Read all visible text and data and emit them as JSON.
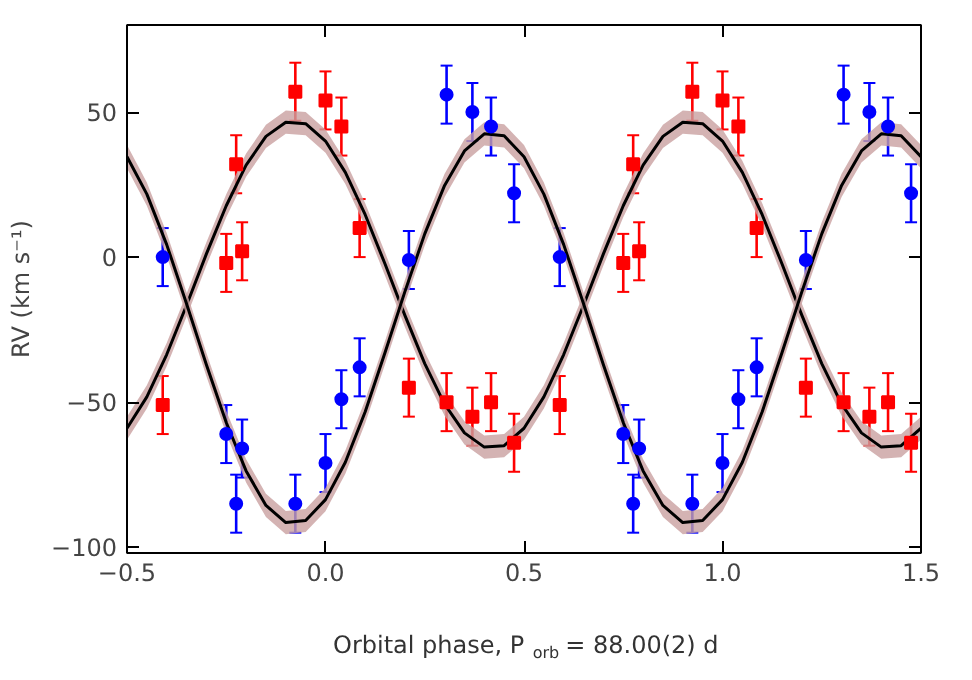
{
  "chart_data": {
    "type": "scatter",
    "xlabel": "Orbital phase, P$_{orb}$ = 88.00(2) d",
    "ylabel": "RV (km s⁻¹)",
    "xlim": [
      -0.5,
      1.5
    ],
    "ylim": [
      -102,
      80
    ],
    "xticks": [
      {
        "value": -0.5,
        "label": "−0.5"
      },
      {
        "value": 0,
        "label": "0.0"
      },
      0.5,
      {
        "value": 1,
        "label": "1.0"
      },
      1.5
    ],
    "yticks": [
      {
        "value": -100,
        "label": "−100"
      },
      {
        "value": -50,
        "label": "−50"
      },
      0,
      50
    ],
    "grid": false,
    "series": [
      {
        "type": "line",
        "color": "#000000",
        "line_style": "solid",
        "x": [
          -0.5,
          -0.45,
          -0.4,
          -0.35,
          -0.3,
          -0.25,
          -0.2,
          -0.15,
          -0.1,
          -0.05,
          0,
          0.05,
          0.1,
          0.15,
          0.2,
          0.25,
          0.3,
          0.35,
          0.4,
          0.45,
          0.5,
          0.55,
          0.6,
          0.65,
          0.7,
          0.75,
          0.8,
          0.85,
          0.9,
          0.95,
          1,
          1.05,
          1.1,
          1.15,
          1.2,
          1.25,
          1.3,
          1.35,
          1.4,
          1.45,
          1.5
        ],
        "values": [
          -59.0,
          -48.2,
          -33.6,
          -16.6,
          1.1,
          17.7,
          31.7,
          41.6,
          46.5,
          46.0,
          40.0,
          29.2,
          14.6,
          -2.4,
          -20.1,
          -36.7,
          -50.7,
          -60.6,
          -65.5,
          -65.0,
          -59.0,
          -48.2,
          -33.6,
          -16.6,
          1.1,
          17.7,
          31.7,
          41.6,
          46.5,
          46.0,
          40.0,
          29.2,
          14.6,
          -2.4,
          -20.1,
          -36.7,
          -50.7,
          -60.6,
          -65.5,
          -65.0,
          -59.0
        ],
        "lower": [
          -63.0,
          -52.2,
          -37.6,
          -20.6,
          -2.9,
          13.7,
          27.7,
          37.6,
          42.5,
          42.0,
          36.0,
          25.2,
          10.6,
          -6.4,
          -24.1,
          -40.7,
          -54.7,
          -64.6,
          -69.5,
          -69.0,
          -63.0,
          -52.2,
          -37.6,
          -20.6,
          -2.9,
          13.7,
          27.7,
          37.6,
          42.5,
          42.0,
          36.0,
          25.2,
          10.6,
          -6.4,
          -24.1,
          -40.7,
          -54.7,
          -64.6,
          -69.5,
          -69.0,
          -63.0
        ],
        "upper": [
          -55.0,
          -44.2,
          -29.6,
          -12.6,
          5.1,
          21.7,
          35.7,
          45.6,
          50.5,
          50.0,
          44.0,
          33.2,
          18.6,
          1.6,
          -16.1,
          -32.7,
          -46.7,
          -56.6,
          -61.5,
          -61.0,
          -55.0,
          -44.2,
          -29.6,
          -12.6,
          5.1,
          21.7,
          35.7,
          45.6,
          50.5,
          50.0,
          44.0,
          33.2,
          18.6,
          1.6,
          -16.1,
          -32.7,
          -46.7,
          -56.6,
          -61.5,
          -61.0,
          -55.0
        ]
      },
      {
        "type": "line",
        "color": "#000000",
        "line_style": "solid",
        "x": [
          -0.5,
          -0.45,
          -0.4,
          -0.35,
          -0.3,
          -0.25,
          -0.2,
          -0.15,
          -0.1,
          -0.05,
          0,
          0.05,
          0.1,
          0.15,
          0.2,
          0.25,
          0.3,
          0.35,
          0.4,
          0.45,
          0.5,
          0.55,
          0.6,
          0.65,
          0.7,
          0.75,
          0.8,
          0.85,
          0.9,
          0.95,
          1,
          1.05,
          1.1,
          1.15,
          1.2,
          1.25,
          1.3,
          1.35,
          1.4,
          1.45,
          1.5
        ],
        "values": [
          34.6,
          21.7,
          4.3,
          -16.1,
          -37.1,
          -57.0,
          -73.7,
          -85.6,
          -91.5,
          -90.8,
          -83.6,
          -70.7,
          -53.3,
          -32.9,
          -11.9,
          8.0,
          24.7,
          36.6,
          42.5,
          41.8,
          34.6,
          21.7,
          4.3,
          -16.1,
          -37.1,
          -57.0,
          -73.7,
          -85.6,
          -91.5,
          -90.8,
          -83.6,
          -70.7,
          -53.3,
          -32.9,
          -11.9,
          8.0,
          24.7,
          36.6,
          42.5,
          41.8,
          34.6
        ],
        "lower": [
          30.6,
          17.7,
          0.3,
          -20.1,
          -41.1,
          -61.0,
          -77.7,
          -89.6,
          -95.5,
          -94.8,
          -87.6,
          -74.7,
          -57.3,
          -36.9,
          -15.9,
          4.0,
          20.7,
          32.6,
          38.5,
          37.8,
          30.6,
          17.7,
          0.3,
          -20.1,
          -41.1,
          -61.0,
          -77.7,
          -89.6,
          -95.5,
          -94.8,
          -87.6,
          -74.7,
          -57.3,
          -36.9,
          -15.9,
          4.0,
          20.7,
          32.6,
          38.5,
          37.8,
          30.6
        ],
        "upper": [
          38.6,
          25.7,
          8.3,
          -12.1,
          -33.1,
          -53.0,
          -69.7,
          -81.6,
          -87.5,
          -86.8,
          -79.6,
          -66.7,
          -49.3,
          -28.9,
          -7.9,
          12.0,
          28.7,
          40.6,
          46.5,
          45.8,
          38.6,
          25.7,
          8.3,
          -12.1,
          -33.1,
          -53.0,
          -69.7,
          -81.6,
          -87.5,
          -86.8,
          -79.6,
          -66.7,
          -49.3,
          -28.9,
          -7.9,
          12.0,
          28.7,
          40.6,
          46.5,
          45.8,
          38.6
        ]
      },
      {
        "color": "#ff0000",
        "marker": "square",
        "x": [
          -0.41,
          -0.25,
          -0.225,
          -0.21,
          -0.076,
          0.0,
          0.04,
          0.086,
          0.21,
          0.305,
          0.37,
          0.417,
          0.475,
          0.59,
          0.75,
          0.775,
          0.79,
          0.924,
          1.0,
          1.04,
          1.086,
          1.21,
          1.305,
          1.37,
          1.417,
          1.475
        ],
        "values": [
          -51,
          -2,
          32,
          2,
          57,
          54,
          45,
          10,
          -45,
          -50,
          -55,
          -50,
          -64,
          -51,
          -2,
          32,
          2,
          57,
          54,
          45,
          10,
          -45,
          -50,
          -55,
          -50,
          -64
        ],
        "errors": [
          10,
          10,
          10,
          10,
          10,
          10,
          10,
          10,
          10,
          10,
          10,
          10,
          10,
          10,
          10,
          10,
          10,
          10,
          10,
          10,
          10,
          10,
          10,
          10,
          10,
          10
        ]
      },
      {
        "color": "#0000ff",
        "marker": "circle",
        "x": [
          -0.41,
          -0.25,
          -0.225,
          -0.21,
          -0.076,
          0.0,
          0.04,
          0.086,
          0.21,
          0.305,
          0.37,
          0.417,
          0.475,
          0.59,
          0.75,
          0.775,
          0.79,
          0.924,
          1.0,
          1.04,
          1.086,
          1.21,
          1.305,
          1.37,
          1.417,
          1.475
        ],
        "values": [
          0,
          -61,
          -85,
          -66,
          -85,
          -71,
          -49,
          -38,
          -1,
          56,
          50,
          45,
          22,
          0,
          -61,
          -85,
          -66,
          -85,
          -71,
          -49,
          -38,
          -1,
          56,
          50,
          45,
          22
        ],
        "errors": [
          10,
          10,
          10,
          10,
          10,
          10,
          10,
          10,
          10,
          10,
          10,
          10,
          10,
          10,
          10,
          10,
          10,
          10,
          10,
          10,
          10,
          10,
          10,
          10,
          10,
          10
        ]
      }
    ]
  }
}
